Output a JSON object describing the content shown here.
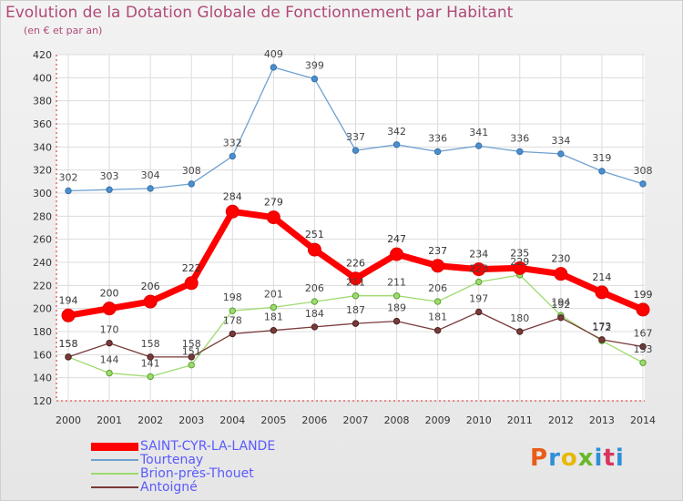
{
  "header": {
    "title": "Evolution de la Dotation Globale de Fonctionnement par Habitant",
    "subtitle": "(en € et par an)"
  },
  "brand": {
    "text": "Proxiti",
    "colors": [
      "#e85c1a",
      "#2f8fd8",
      "#e8b800",
      "#68b82a",
      "#2f8fd8",
      "#d8345f",
      "#2f8fd8"
    ]
  },
  "legend": [
    {
      "label": "SAINT-CYR-LA-LANDE",
      "color": "#ff0000",
      "label_color": "#5a5aff"
    },
    {
      "label": "Tourtenay",
      "color": "#6fa0d0",
      "label_color": "#5a5aff"
    },
    {
      "label": "Brion-près-Thouet",
      "color": "#9edb6e",
      "label_color": "#5a5aff"
    },
    {
      "label": "Antoigné",
      "color": "#7a3a3a",
      "label_color": "#5a5aff"
    }
  ],
  "chart_data": {
    "type": "line",
    "title": "Evolution de la Dotation Globale de Fonctionnement par Habitant",
    "subtitle": "(en € et par an)",
    "x": [
      2000,
      2001,
      2002,
      2003,
      2004,
      2005,
      2006,
      2007,
      2008,
      2009,
      2010,
      2011,
      2012,
      2013,
      2014
    ],
    "ylim": [
      120,
      420
    ],
    "yticks": [
      120,
      140,
      160,
      180,
      200,
      220,
      240,
      260,
      280,
      300,
      320,
      340,
      360,
      380,
      400,
      420
    ],
    "grid": true,
    "legend_position": "bottom-left",
    "series": [
      {
        "name": "SAINT-CYR-LA-LANDE",
        "color": "#ff0000",
        "values": [
          194,
          200,
          206,
          222,
          284,
          279,
          251,
          226,
          247,
          237,
          234,
          235,
          230,
          214,
          199
        ]
      },
      {
        "name": "Tourtenay",
        "color": "#6fa0d0",
        "values": [
          302,
          303,
          304,
          308,
          332,
          409,
          399,
          337,
          342,
          336,
          341,
          336,
          334,
          319,
          308
        ]
      },
      {
        "name": "Brion-près-Thouet",
        "color": "#9edb6e",
        "values": [
          158,
          144,
          141,
          151,
          198,
          201,
          206,
          211,
          211,
          206,
          223,
          229,
          194,
          172,
          153
        ]
      },
      {
        "name": "Antoigné",
        "color": "#7a3a3a",
        "values": [
          158,
          170,
          158,
          158,
          178,
          181,
          184,
          187,
          189,
          181,
          197,
          180,
          192,
          173,
          167
        ]
      }
    ]
  }
}
